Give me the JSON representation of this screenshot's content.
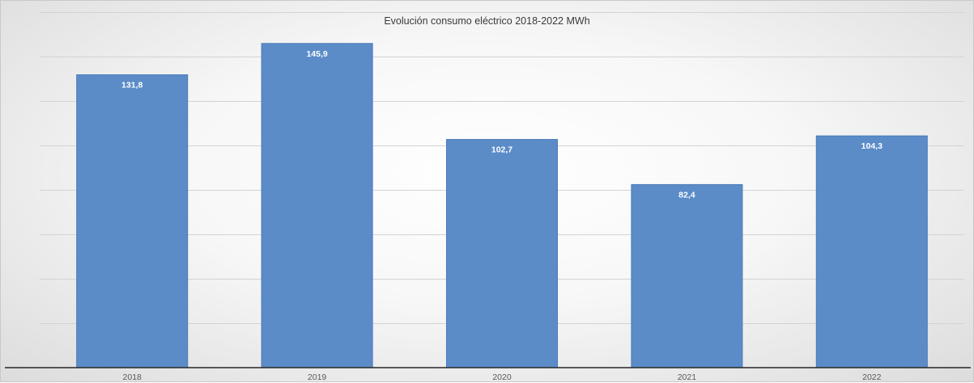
{
  "chart_data": {
    "type": "bar",
    "title": "Evolución consumo eléctrico 2018-2022 MWh",
    "xlabel": "",
    "ylabel": "",
    "categories": [
      "2018",
      "2019",
      "2020",
      "2021",
      "2022"
    ],
    "values": [
      131.8,
      145.9,
      102.7,
      82.4,
      104.3
    ],
    "value_labels": [
      "131,8",
      "145,9",
      "102,7",
      "82,4",
      "104,3"
    ],
    "ylim": [
      0,
      160
    ],
    "ytick_step": 20,
    "y_tick_labels_visible": false,
    "grid": true,
    "legend": "none",
    "bar_color": "#5b8cc8"
  }
}
